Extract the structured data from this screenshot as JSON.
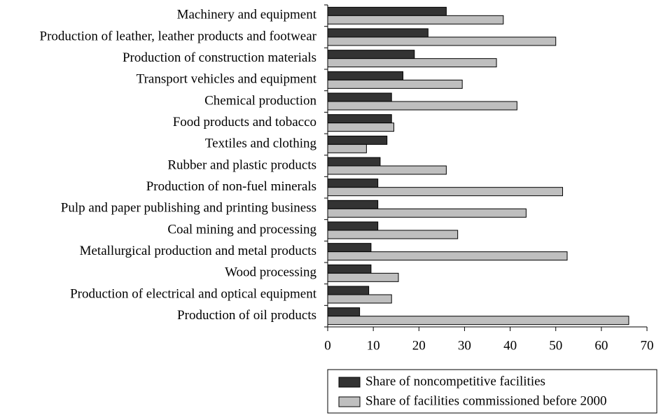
{
  "chart_data": {
    "type": "barh",
    "categories": [
      "Machinery and equipment",
      "Production of leather, leather products and footwear",
      "Production of construction materials",
      "Transport vehicles and equipment",
      "Chemical production",
      "Food products and tobacco",
      "Textiles and clothing",
      "Rubber and plastic products",
      "Production of non-fuel minerals",
      "Pulp and paper publishing and printing business",
      "Coal mining and processing",
      "Metallurgical production and metal products",
      "Wood processing",
      "Production of electrical and optical equipment",
      "Production of oil products"
    ],
    "series": [
      {
        "name": "Share of noncompetitive facilities",
        "color": "#333333",
        "values": [
          26,
          22,
          19,
          16.5,
          14,
          14,
          13,
          11.5,
          11,
          11,
          11,
          9.5,
          9.5,
          9,
          7
        ]
      },
      {
        "name": "Share of facilities commissioned before 2000",
        "color": "#bfbfbf",
        "values": [
          38.5,
          50,
          37,
          29.5,
          41.5,
          14.5,
          8.5,
          26,
          51.5,
          43.5,
          28.5,
          52.5,
          15.5,
          14,
          66
        ]
      }
    ],
    "xlim": [
      0,
      70
    ],
    "xticks": [
      0,
      10,
      20,
      30,
      40,
      50,
      60,
      70
    ],
    "legend": "bottom-right"
  }
}
